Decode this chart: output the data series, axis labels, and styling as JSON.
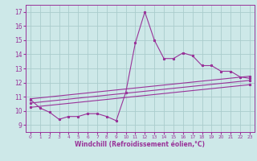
{
  "bg_color": "#cde8e8",
  "line_color": "#993399",
  "grid_color": "#aacccc",
  "xlabel": "Windchill (Refroidissement éolien,°C)",
  "xlabel_color": "#993399",
  "xlim": [
    -0.5,
    23.5
  ],
  "ylim": [
    8.5,
    17.5
  ],
  "yticks": [
    9,
    10,
    11,
    12,
    13,
    14,
    15,
    16,
    17
  ],
  "xticks": [
    0,
    1,
    2,
    3,
    4,
    5,
    6,
    7,
    8,
    9,
    10,
    11,
    12,
    13,
    14,
    15,
    16,
    17,
    18,
    19,
    20,
    21,
    22,
    23
  ],
  "series1_x": [
    0,
    1,
    2,
    3,
    4,
    5,
    6,
    7,
    8,
    9,
    10,
    11,
    12,
    13,
    14,
    15,
    16,
    17,
    18,
    19,
    20,
    21,
    22,
    23
  ],
  "series1_y": [
    10.8,
    10.2,
    9.9,
    9.4,
    9.6,
    9.6,
    9.8,
    9.8,
    9.6,
    9.3,
    11.3,
    14.8,
    17.0,
    15.0,
    13.7,
    13.7,
    14.1,
    13.9,
    13.2,
    13.2,
    12.8,
    12.8,
    12.4,
    12.3
  ],
  "series2_x": [
    0,
    23
  ],
  "series2_y": [
    10.85,
    12.45
  ],
  "series3_x": [
    0,
    23
  ],
  "series3_y": [
    10.55,
    12.15
  ],
  "series4_x": [
    0,
    23
  ],
  "series4_y": [
    10.25,
    11.85
  ]
}
